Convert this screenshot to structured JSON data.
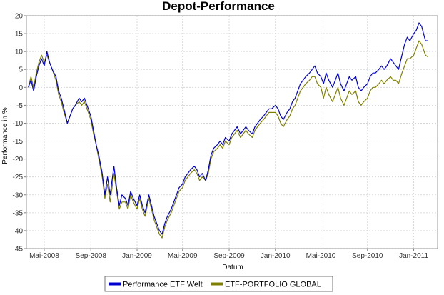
{
  "chart_data": {
    "type": "line",
    "title": "Depot-Performance",
    "xlabel": "Datum",
    "ylabel": "Performance in %",
    "ylim": [
      -45,
      20
    ],
    "yticks": [
      20,
      15,
      10,
      5,
      0,
      -5,
      -10,
      -15,
      -20,
      -25,
      -30,
      -35,
      -40,
      -45
    ],
    "xlim": [
      "2008-03-15",
      "2011-03-05"
    ],
    "xticks": [
      {
        "label": "Mai-2008",
        "date": "2008-05-01"
      },
      {
        "label": "Sep-2008",
        "date": "2008-09-01"
      },
      {
        "label": "Jan-2009",
        "date": "2009-01-01"
      },
      {
        "label": "Mai-2009",
        "date": "2009-05-01"
      },
      {
        "label": "Sep-2009",
        "date": "2009-09-01"
      },
      {
        "label": "Jan-2010",
        "date": "2010-01-01"
      },
      {
        "label": "Mai-2010",
        "date": "2010-05-01"
      },
      {
        "label": "Sep-2010",
        "date": "2010-09-01"
      },
      {
        "label": "Jan-2011",
        "date": "2011-01-01"
      }
    ],
    "grid": true,
    "legend_position": "bottom",
    "series": [
      {
        "name": "Performance ETF Welt",
        "color": "#0000cc",
        "points": [
          [
            "2008-03-20",
            0
          ],
          [
            "2008-03-27",
            2
          ],
          [
            "2008-04-03",
            -1
          ],
          [
            "2008-04-10",
            3
          ],
          [
            "2008-04-17",
            6
          ],
          [
            "2008-04-24",
            8
          ],
          [
            "2008-05-01",
            6
          ],
          [
            "2008-05-08",
            10
          ],
          [
            "2008-05-15",
            7
          ],
          [
            "2008-05-22",
            5
          ],
          [
            "2008-06-01",
            3
          ],
          [
            "2008-06-08",
            -1
          ],
          [
            "2008-06-15",
            -3
          ],
          [
            "2008-06-22",
            -6
          ],
          [
            "2008-07-01",
            -10
          ],
          [
            "2008-07-08",
            -8
          ],
          [
            "2008-07-15",
            -6
          ],
          [
            "2008-07-22",
            -5
          ],
          [
            "2008-08-01",
            -3
          ],
          [
            "2008-08-08",
            -4
          ],
          [
            "2008-08-15",
            -3
          ],
          [
            "2008-08-22",
            -5
          ],
          [
            "2008-09-01",
            -8
          ],
          [
            "2008-09-08",
            -12
          ],
          [
            "2008-09-15",
            -16
          ],
          [
            "2008-09-22",
            -19
          ],
          [
            "2008-10-01",
            -24
          ],
          [
            "2008-10-08",
            -30
          ],
          [
            "2008-10-15",
            -25
          ],
          [
            "2008-10-22",
            -30
          ],
          [
            "2008-11-01",
            -22
          ],
          [
            "2008-11-08",
            -28
          ],
          [
            "2008-11-15",
            -33
          ],
          [
            "2008-11-22",
            -30
          ],
          [
            "2008-12-01",
            -31
          ],
          [
            "2008-12-08",
            -33
          ],
          [
            "2008-12-15",
            -29
          ],
          [
            "2008-12-22",
            -31
          ],
          [
            "2009-01-01",
            -33
          ],
          [
            "2009-01-08",
            -30
          ],
          [
            "2009-01-15",
            -33
          ],
          [
            "2009-01-22",
            -35
          ],
          [
            "2009-02-01",
            -30
          ],
          [
            "2009-02-08",
            -33
          ],
          [
            "2009-02-15",
            -36
          ],
          [
            "2009-02-22",
            -38
          ],
          [
            "2009-03-01",
            -40
          ],
          [
            "2009-03-08",
            -41
          ],
          [
            "2009-03-15",
            -38
          ],
          [
            "2009-03-22",
            -36
          ],
          [
            "2009-04-01",
            -34
          ],
          [
            "2009-04-08",
            -32
          ],
          [
            "2009-04-15",
            -30
          ],
          [
            "2009-04-22",
            -28
          ],
          [
            "2009-05-01",
            -27
          ],
          [
            "2009-05-08",
            -25
          ],
          [
            "2009-05-15",
            -24
          ],
          [
            "2009-05-22",
            -23
          ],
          [
            "2009-06-01",
            -22
          ],
          [
            "2009-06-08",
            -23
          ],
          [
            "2009-06-15",
            -25
          ],
          [
            "2009-06-22",
            -24
          ],
          [
            "2009-07-01",
            -26
          ],
          [
            "2009-07-08",
            -23
          ],
          [
            "2009-07-15",
            -19
          ],
          [
            "2009-07-22",
            -17
          ],
          [
            "2009-08-01",
            -16
          ],
          [
            "2009-08-08",
            -15
          ],
          [
            "2009-08-15",
            -16
          ],
          [
            "2009-08-22",
            -14
          ],
          [
            "2009-09-01",
            -15
          ],
          [
            "2009-09-08",
            -13
          ],
          [
            "2009-09-15",
            -12
          ],
          [
            "2009-09-22",
            -11
          ],
          [
            "2009-10-01",
            -13
          ],
          [
            "2009-10-08",
            -12
          ],
          [
            "2009-10-15",
            -11
          ],
          [
            "2009-10-22",
            -12
          ],
          [
            "2009-11-01",
            -13
          ],
          [
            "2009-11-08",
            -11
          ],
          [
            "2009-11-15",
            -10
          ],
          [
            "2009-11-22",
            -9
          ],
          [
            "2009-12-01",
            -8
          ],
          [
            "2009-12-08",
            -7
          ],
          [
            "2009-12-15",
            -6
          ],
          [
            "2009-12-22",
            -6
          ],
          [
            "2010-01-01",
            -5
          ],
          [
            "2010-01-08",
            -6
          ],
          [
            "2010-01-15",
            -8
          ],
          [
            "2010-01-22",
            -9
          ],
          [
            "2010-02-01",
            -7
          ],
          [
            "2010-02-08",
            -6
          ],
          [
            "2010-02-15",
            -4
          ],
          [
            "2010-02-22",
            -3
          ],
          [
            "2010-03-01",
            -1
          ],
          [
            "2010-03-08",
            1
          ],
          [
            "2010-03-15",
            2
          ],
          [
            "2010-03-22",
            3
          ],
          [
            "2010-04-01",
            4
          ],
          [
            "2010-04-08",
            5
          ],
          [
            "2010-04-15",
            6
          ],
          [
            "2010-04-22",
            4
          ],
          [
            "2010-05-01",
            3
          ],
          [
            "2010-05-08",
            1
          ],
          [
            "2010-05-15",
            4
          ],
          [
            "2010-05-22",
            2
          ],
          [
            "2010-06-01",
            0
          ],
          [
            "2010-06-08",
            2
          ],
          [
            "2010-06-15",
            4
          ],
          [
            "2010-06-22",
            1
          ],
          [
            "2010-07-01",
            -1
          ],
          [
            "2010-07-08",
            1
          ],
          [
            "2010-07-15",
            3
          ],
          [
            "2010-07-22",
            2
          ],
          [
            "2010-08-01",
            3
          ],
          [
            "2010-08-08",
            0
          ],
          [
            "2010-08-15",
            -1
          ],
          [
            "2010-08-22",
            0
          ],
          [
            "2010-09-01",
            1
          ],
          [
            "2010-09-08",
            3
          ],
          [
            "2010-09-15",
            4
          ],
          [
            "2010-09-22",
            4
          ],
          [
            "2010-10-01",
            5
          ],
          [
            "2010-10-08",
            6
          ],
          [
            "2010-10-15",
            5
          ],
          [
            "2010-10-22",
            6
          ],
          [
            "2010-11-01",
            8
          ],
          [
            "2010-11-08",
            7
          ],
          [
            "2010-11-15",
            6
          ],
          [
            "2010-11-22",
            5
          ],
          [
            "2010-12-01",
            9
          ],
          [
            "2010-12-08",
            12
          ],
          [
            "2010-12-15",
            14
          ],
          [
            "2010-12-22",
            13
          ],
          [
            "2011-01-01",
            15
          ],
          [
            "2011-01-08",
            16
          ],
          [
            "2011-01-15",
            18
          ],
          [
            "2011-01-22",
            17
          ],
          [
            "2011-02-01",
            13
          ],
          [
            "2011-02-08",
            13
          ]
        ]
      },
      {
        "name": "ETF-PORTFOLIO GLOBAL",
        "color": "#808000",
        "points": [
          [
            "2008-03-20",
            0
          ],
          [
            "2008-03-27",
            3
          ],
          [
            "2008-04-03",
            0
          ],
          [
            "2008-04-10",
            4
          ],
          [
            "2008-04-17",
            7
          ],
          [
            "2008-04-24",
            9
          ],
          [
            "2008-05-01",
            7
          ],
          [
            "2008-05-08",
            9
          ],
          [
            "2008-05-15",
            7
          ],
          [
            "2008-05-22",
            5
          ],
          [
            "2008-06-01",
            2
          ],
          [
            "2008-06-08",
            -2
          ],
          [
            "2008-06-15",
            -4
          ],
          [
            "2008-06-22",
            -7
          ],
          [
            "2008-07-01",
            -10
          ],
          [
            "2008-07-08",
            -8
          ],
          [
            "2008-07-15",
            -6
          ],
          [
            "2008-07-22",
            -5
          ],
          [
            "2008-08-01",
            -4
          ],
          [
            "2008-08-08",
            -5
          ],
          [
            "2008-08-15",
            -4
          ],
          [
            "2008-08-22",
            -6
          ],
          [
            "2008-09-01",
            -9
          ],
          [
            "2008-09-08",
            -13
          ],
          [
            "2008-09-15",
            -16
          ],
          [
            "2008-09-22",
            -20
          ],
          [
            "2008-10-01",
            -25
          ],
          [
            "2008-10-08",
            -31
          ],
          [
            "2008-10-15",
            -27
          ],
          [
            "2008-10-22",
            -32
          ],
          [
            "2008-11-01",
            -24
          ],
          [
            "2008-11-08",
            -29
          ],
          [
            "2008-11-15",
            -34
          ],
          [
            "2008-11-22",
            -32
          ],
          [
            "2008-12-01",
            -32
          ],
          [
            "2008-12-08",
            -34
          ],
          [
            "2008-12-15",
            -30
          ],
          [
            "2008-12-22",
            -32
          ],
          [
            "2009-01-01",
            -34
          ],
          [
            "2009-01-08",
            -31
          ],
          [
            "2009-01-15",
            -34
          ],
          [
            "2009-01-22",
            -36
          ],
          [
            "2009-02-01",
            -31
          ],
          [
            "2009-02-08",
            -34
          ],
          [
            "2009-02-15",
            -37
          ],
          [
            "2009-02-22",
            -39
          ],
          [
            "2009-03-01",
            -41
          ],
          [
            "2009-03-08",
            -42
          ],
          [
            "2009-03-15",
            -39
          ],
          [
            "2009-03-22",
            -37
          ],
          [
            "2009-04-01",
            -35
          ],
          [
            "2009-04-08",
            -33
          ],
          [
            "2009-04-15",
            -31
          ],
          [
            "2009-04-22",
            -29
          ],
          [
            "2009-05-01",
            -28
          ],
          [
            "2009-05-08",
            -26
          ],
          [
            "2009-05-15",
            -25
          ],
          [
            "2009-05-22",
            -24
          ],
          [
            "2009-06-01",
            -23
          ],
          [
            "2009-06-08",
            -24
          ],
          [
            "2009-06-15",
            -26
          ],
          [
            "2009-06-22",
            -25
          ],
          [
            "2009-07-01",
            -26
          ],
          [
            "2009-07-08",
            -24
          ],
          [
            "2009-07-15",
            -20
          ],
          [
            "2009-07-22",
            -18
          ],
          [
            "2009-08-01",
            -17
          ],
          [
            "2009-08-08",
            -16
          ],
          [
            "2009-08-15",
            -17
          ],
          [
            "2009-08-22",
            -15
          ],
          [
            "2009-09-01",
            -16
          ],
          [
            "2009-09-08",
            -14
          ],
          [
            "2009-09-15",
            -13
          ],
          [
            "2009-09-22",
            -12
          ],
          [
            "2009-10-01",
            -14
          ],
          [
            "2009-10-08",
            -13
          ],
          [
            "2009-10-15",
            -12
          ],
          [
            "2009-10-22",
            -13
          ],
          [
            "2009-11-01",
            -14
          ],
          [
            "2009-11-08",
            -12
          ],
          [
            "2009-11-15",
            -11
          ],
          [
            "2009-11-22",
            -10
          ],
          [
            "2009-12-01",
            -9
          ],
          [
            "2009-12-08",
            -8
          ],
          [
            "2009-12-15",
            -7
          ],
          [
            "2009-12-22",
            -7
          ],
          [
            "2010-01-01",
            -7
          ],
          [
            "2010-01-08",
            -8
          ],
          [
            "2010-01-15",
            -10
          ],
          [
            "2010-01-22",
            -11
          ],
          [
            "2010-02-01",
            -9
          ],
          [
            "2010-02-08",
            -8
          ],
          [
            "2010-02-15",
            -6
          ],
          [
            "2010-02-22",
            -5
          ],
          [
            "2010-03-01",
            -3
          ],
          [
            "2010-03-08",
            -1
          ],
          [
            "2010-03-15",
            0
          ],
          [
            "2010-03-22",
            1
          ],
          [
            "2010-04-01",
            2
          ],
          [
            "2010-04-08",
            3
          ],
          [
            "2010-04-15",
            3
          ],
          [
            "2010-04-22",
            1
          ],
          [
            "2010-05-01",
            0
          ],
          [
            "2010-05-08",
            -3
          ],
          [
            "2010-05-15",
            0
          ],
          [
            "2010-05-22",
            -2
          ],
          [
            "2010-06-01",
            -4
          ],
          [
            "2010-06-08",
            -2
          ],
          [
            "2010-06-15",
            0
          ],
          [
            "2010-06-22",
            -3
          ],
          [
            "2010-07-01",
            -5
          ],
          [
            "2010-07-08",
            -3
          ],
          [
            "2010-07-15",
            -1
          ],
          [
            "2010-07-22",
            -2
          ],
          [
            "2010-08-01",
            -1
          ],
          [
            "2010-08-08",
            -4
          ],
          [
            "2010-08-15",
            -5
          ],
          [
            "2010-08-22",
            -4
          ],
          [
            "2010-09-01",
            -3
          ],
          [
            "2010-09-08",
            -1
          ],
          [
            "2010-09-15",
            0
          ],
          [
            "2010-09-22",
            0
          ],
          [
            "2010-10-01",
            1
          ],
          [
            "2010-10-08",
            2
          ],
          [
            "2010-10-15",
            1
          ],
          [
            "2010-10-22",
            2
          ],
          [
            "2010-11-01",
            3
          ],
          [
            "2010-11-08",
            2
          ],
          [
            "2010-11-15",
            2
          ],
          [
            "2010-11-22",
            1
          ],
          [
            "2010-12-01",
            4
          ],
          [
            "2010-12-08",
            6
          ],
          [
            "2010-12-15",
            8
          ],
          [
            "2010-12-22",
            8
          ],
          [
            "2011-01-01",
            9
          ],
          [
            "2011-01-08",
            11
          ],
          [
            "2011-01-15",
            13
          ],
          [
            "2011-01-22",
            12
          ],
          [
            "2011-02-01",
            9
          ],
          [
            "2011-02-08",
            8.5
          ]
        ]
      }
    ]
  }
}
